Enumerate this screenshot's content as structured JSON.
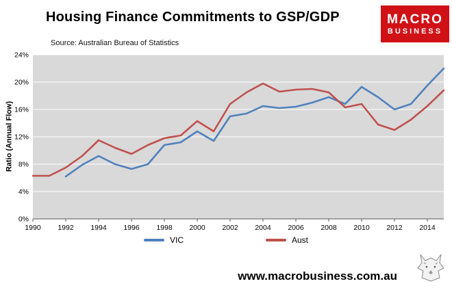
{
  "header": {
    "title": "Housing Finance Commitments to GSP/GDP",
    "source": "Source: Australian Bureau of Statistics",
    "logo": {
      "line1": "MACRO",
      "line2": "BUSINESS",
      "bg_color": "#d01217"
    }
  },
  "chart_data": {
    "type": "line",
    "title": "Housing Finance Commitments to GSP/GDP",
    "xlabel": "",
    "ylabel": "Ratio (Annual Flow)",
    "ylim": [
      0,
      24
    ],
    "ytick_step": 4,
    "ytick_suffix": "%",
    "xlim": [
      1990,
      2015
    ],
    "xticks": [
      1990,
      1992,
      1994,
      1996,
      1998,
      2000,
      2002,
      2004,
      2006,
      2008,
      2010,
      2012,
      2014
    ],
    "grid": "horizontal-white-gridlines",
    "plot_bg": "#d9d9d9",
    "legend_position": "bottom",
    "series": [
      {
        "name": "VIC",
        "color": "#4f81bd",
        "x": [
          1992,
          1993,
          1994,
          1995,
          1996,
          1997,
          1998,
          1999,
          2000,
          2001,
          2002,
          2003,
          2004,
          2005,
          2006,
          2007,
          2008,
          2009,
          2010,
          2011,
          2012,
          2013,
          2014,
          2015
        ],
        "values": [
          6.2,
          7.9,
          9.2,
          8.0,
          7.3,
          8.0,
          10.8,
          11.2,
          12.8,
          11.4,
          15.0,
          15.4,
          16.5,
          16.2,
          16.4,
          17.0,
          17.8,
          16.8,
          19.3,
          17.8,
          16.0,
          16.8,
          19.5,
          22.0
        ]
      },
      {
        "name": "Aust",
        "color": "#c0504d",
        "x": [
          1990,
          1991,
          1992,
          1993,
          1994,
          1995,
          1996,
          1997,
          1998,
          1999,
          2000,
          2001,
          2002,
          2003,
          2004,
          2005,
          2006,
          2007,
          2008,
          2009,
          2010,
          2011,
          2012,
          2013,
          2014,
          2015
        ],
        "values": [
          6.3,
          6.3,
          7.5,
          9.2,
          11.5,
          10.4,
          9.5,
          10.8,
          11.8,
          12.2,
          14.3,
          12.8,
          16.8,
          18.5,
          19.8,
          18.6,
          18.9,
          19.0,
          18.5,
          16.3,
          16.8,
          13.8,
          13.0,
          14.5,
          16.5,
          18.8
        ]
      }
    ]
  },
  "footer": {
    "url": "www.macrobusiness.com.au",
    "wolf_logo": "wolf-sketch"
  }
}
